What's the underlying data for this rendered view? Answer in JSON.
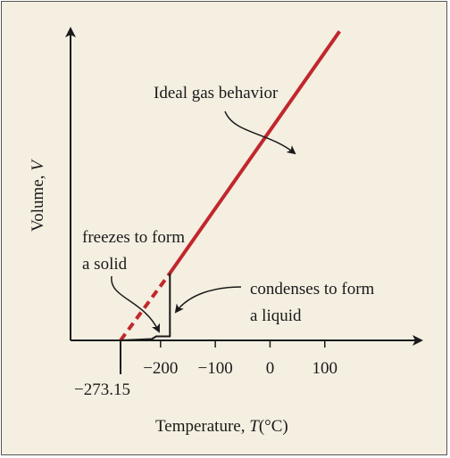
{
  "chart_data": {
    "type": "line",
    "xlabel": "Temperature, ",
    "xlabel_var": "T",
    "xlabel_unit": "(°C)",
    "ylabel": "Volume, ",
    "ylabel_var": "V",
    "x_ticks": [
      {
        "value": -200,
        "label": "−200"
      },
      {
        "value": -100,
        "label": "−100"
      },
      {
        "value": 0,
        "label": "0"
      },
      {
        "value": 100,
        "label": "100"
      }
    ],
    "zero_point": {
      "value": -273.15,
      "label": "−273.15"
    },
    "xlim": [
      -360,
      220
    ],
    "ylim": [
      0,
      1
    ],
    "grid": false,
    "series": [
      {
        "name": "Ideal gas behavior",
        "style": "solid",
        "color": "#c1272d",
        "x": [
          -183,
          127
        ],
        "y": [
          0.2,
          0.92
        ]
      },
      {
        "style": "dashed",
        "color": "#c1272d",
        "x": [
          -273.15,
          -183
        ],
        "y": [
          0.0,
          0.2
        ]
      },
      {
        "style": "solid",
        "color": "#1a1a1a",
        "x": [
          -273.15,
          -216,
          -208,
          -200,
          -183,
          -183,
          -183
        ],
        "y": [
          0.0,
          0.004,
          0.012,
          0.012,
          0.012,
          0.012,
          0.2
        ]
      }
    ],
    "annotations": [
      {
        "id": "ideal",
        "lines": [
          "Ideal gas behavior"
        ]
      },
      {
        "id": "freeze",
        "lines": [
          "freezes to form",
          "a solid"
        ]
      },
      {
        "id": "condense",
        "lines": [
          "condenses to form",
          "a liquid"
        ]
      }
    ]
  }
}
